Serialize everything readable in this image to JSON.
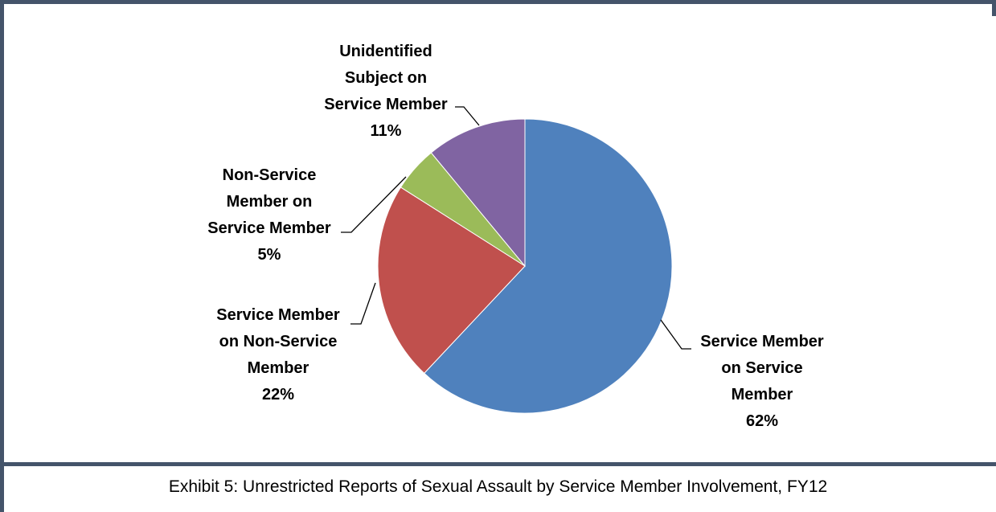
{
  "chart_data": {
    "type": "pie",
    "title": "",
    "slices": [
      {
        "label_lines": [
          "Service Member",
          "on Service",
          "Member"
        ],
        "pct_label": "62%",
        "value": 62,
        "color": "#4f81bd"
      },
      {
        "label_lines": [
          "Service Member",
          "on Non-Service",
          "Member"
        ],
        "pct_label": "22%",
        "value": 22,
        "color": "#c0504d"
      },
      {
        "label_lines": [
          "Non-Service",
          "Member on",
          "Service Member"
        ],
        "pct_label": "5%",
        "value": 5,
        "color": "#9bbb59"
      },
      {
        "label_lines": [
          "Unidentified",
          "Subject on",
          "Service Member"
        ],
        "pct_label": "11%",
        "value": 11,
        "color": "#8064a2"
      }
    ]
  },
  "caption": "Exhibit 5:  Unrestricted Reports of Sexual Assault by Service Member Involvement, FY12"
}
